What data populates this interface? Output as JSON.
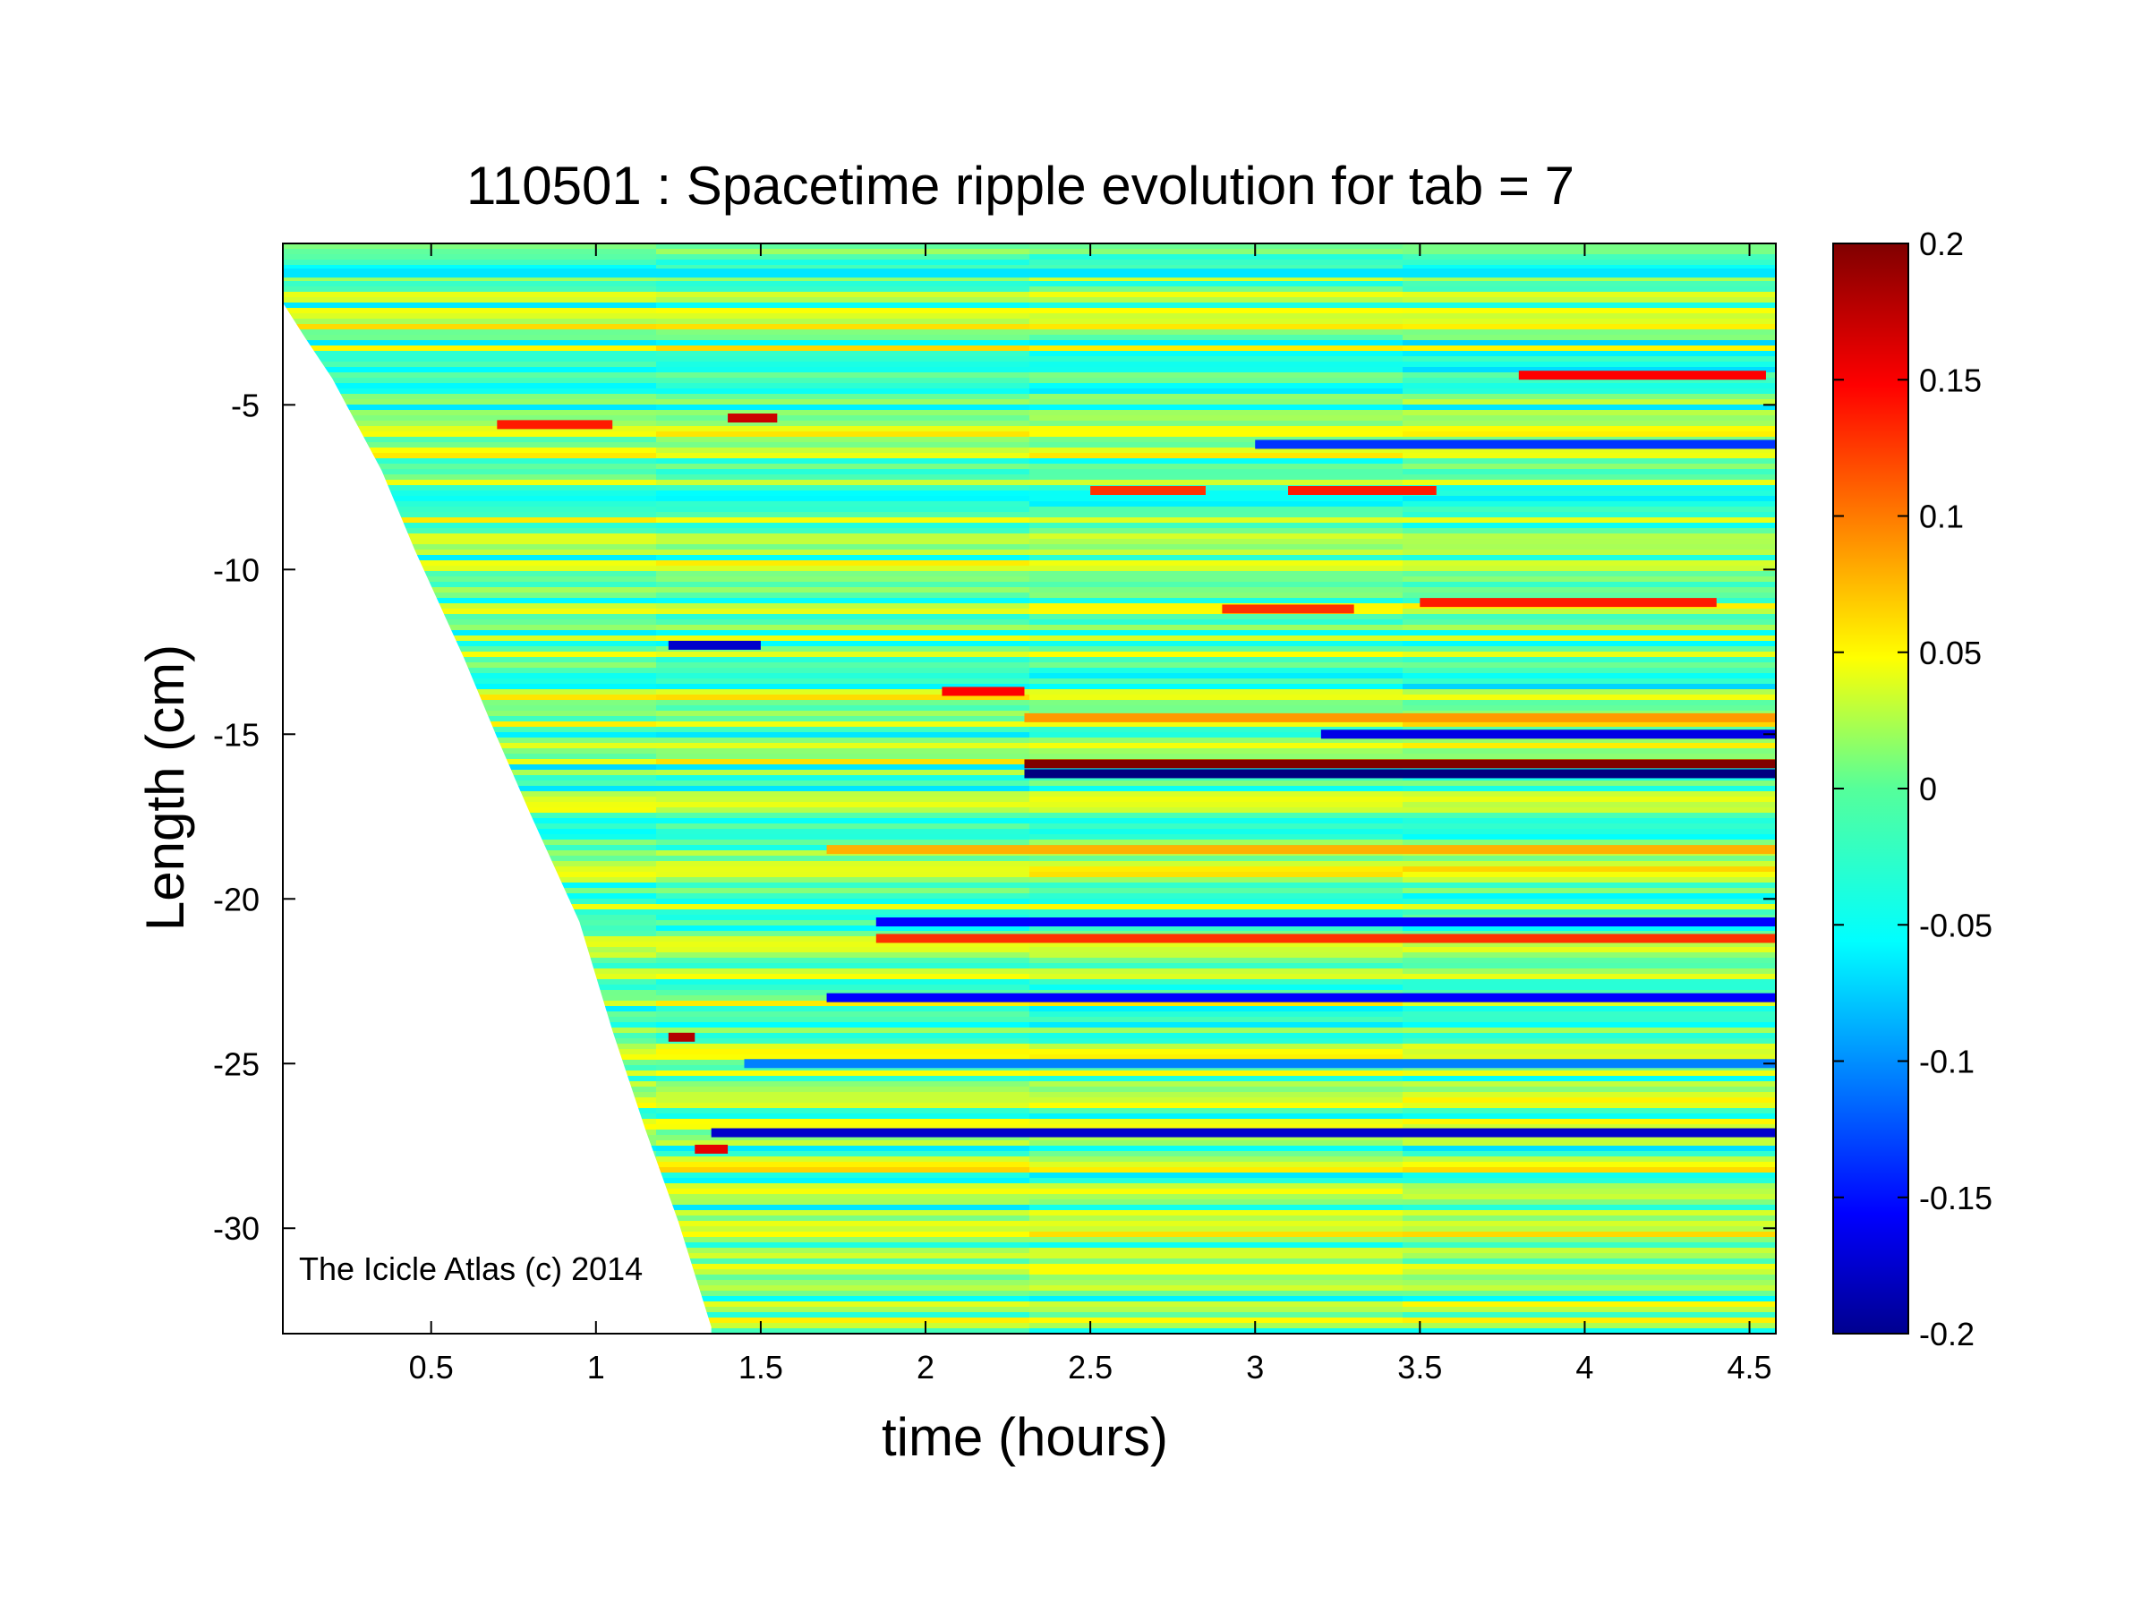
{
  "chart_data": {
    "type": "heatmap",
    "title": "110501 : Spacetime ripple evolution for tab = 7",
    "xlabel": "time (hours)",
    "ylabel": "Length (cm)",
    "xlim": [
      0.05,
      4.58
    ],
    "ylim": [
      -33.2,
      -0.1
    ],
    "x_ticks": [
      0.5,
      1,
      1.5,
      2,
      2.5,
      3,
      3.5,
      4,
      4.5
    ],
    "x_tick_labels": [
      "0.5",
      "1",
      "1.5",
      "2",
      "2.5",
      "3",
      "3.5",
      "4",
      "4.5"
    ],
    "y_ticks": [
      -5,
      -10,
      -15,
      -20,
      -25,
      -30
    ],
    "y_tick_labels": [
      "-5",
      "-10",
      "-15",
      "-20",
      "-25",
      "-30"
    ],
    "colormap": "jet",
    "colorbar": {
      "clim": [
        -0.2,
        0.2
      ],
      "ticks": [
        0.2,
        0.15,
        0.1,
        0.05,
        0,
        -0.05,
        -0.1,
        -0.15,
        -0.2
      ],
      "tick_labels": [
        "0.2",
        "0.15",
        "0.1",
        "0.05",
        "0",
        "-0.05",
        "-0.1",
        "-0.15",
        "-0.2"
      ],
      "location": "right"
    },
    "grid": false,
    "data_boundary": {
      "description_points": [
        [
          0.05,
          -1.9
        ],
        [
          0.12,
          -3.0
        ],
        [
          0.2,
          -4.2
        ],
        [
          0.35,
          -7.0
        ],
        [
          0.45,
          -9.4
        ],
        [
          0.6,
          -12.7
        ],
        [
          0.7,
          -15.1
        ],
        [
          0.8,
          -17.4
        ],
        [
          0.95,
          -20.7
        ],
        [
          1.05,
          -24.0
        ],
        [
          1.15,
          -27.0
        ],
        [
          1.25,
          -29.8
        ],
        [
          1.35,
          -33.0
        ]
      ]
    },
    "features": [
      {
        "t_start": 0.05,
        "t_end": 4.58,
        "length": -1.0,
        "value": -0.06
      },
      {
        "t_start": 0.7,
        "t_end": 1.05,
        "length": -5.6,
        "value": 0.14
      },
      {
        "t_start": 1.4,
        "t_end": 1.55,
        "length": -5.4,
        "value": 0.17
      },
      {
        "t_start": 3.8,
        "t_end": 4.55,
        "length": -4.1,
        "value": 0.15
      },
      {
        "t_start": 2.5,
        "t_end": 2.85,
        "length": -7.6,
        "value": 0.13
      },
      {
        "t_start": 3.1,
        "t_end": 3.55,
        "length": -7.6,
        "value": 0.14
      },
      {
        "t_start": 3.0,
        "t_end": 4.58,
        "length": -6.2,
        "value": -0.13
      },
      {
        "t_start": 2.9,
        "t_end": 3.3,
        "length": -11.2,
        "value": 0.13
      },
      {
        "t_start": 3.5,
        "t_end": 4.4,
        "length": -11.0,
        "value": 0.14
      },
      {
        "t_start": 1.22,
        "t_end": 1.5,
        "length": -12.3,
        "value": -0.17
      },
      {
        "t_start": 2.05,
        "t_end": 2.3,
        "length": -13.7,
        "value": 0.15
      },
      {
        "t_start": 2.3,
        "t_end": 4.58,
        "length": -14.5,
        "value": 0.09
      },
      {
        "t_start": 3.2,
        "t_end": 4.58,
        "length": -15.0,
        "value": -0.16
      },
      {
        "t_start": 2.3,
        "t_end": 4.58,
        "length": -15.9,
        "value": 0.2
      },
      {
        "t_start": 2.3,
        "t_end": 4.58,
        "length": -16.2,
        "value": -0.2
      },
      {
        "t_start": 1.7,
        "t_end": 4.58,
        "length": -18.5,
        "value": 0.08
      },
      {
        "t_start": 1.85,
        "t_end": 4.58,
        "length": -20.7,
        "value": -0.15
      },
      {
        "t_start": 1.85,
        "t_end": 4.58,
        "length": -21.2,
        "value": 0.13
      },
      {
        "t_start": 1.7,
        "t_end": 4.58,
        "length": -23.0,
        "value": -0.15
      },
      {
        "t_start": 1.22,
        "t_end": 1.3,
        "length": -24.2,
        "value": 0.18
      },
      {
        "t_start": 1.45,
        "t_end": 4.58,
        "length": -25.0,
        "value": -0.1
      },
      {
        "t_start": 1.35,
        "t_end": 4.58,
        "length": -27.1,
        "value": -0.17
      },
      {
        "t_start": 1.3,
        "t_end": 1.4,
        "length": -27.6,
        "value": 0.16
      }
    ]
  },
  "watermark": "The Icicle Atlas (c) 2014"
}
